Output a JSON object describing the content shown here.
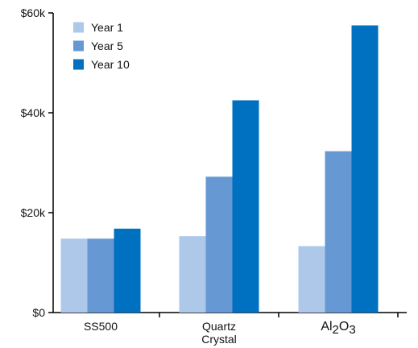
{
  "chart_data": {
    "type": "bar",
    "title": "",
    "xlabel": "",
    "ylabel": "",
    "categories": [
      {
        "lines": [
          "SS500"
        ]
      },
      {
        "lines": [
          "Quartz",
          "Crystal"
        ]
      },
      {
        "lines": [
          "Al2O3"
        ],
        "runs": [
          {
            "text": "Al",
            "sub": false
          },
          {
            "text": "2",
            "sub": true
          },
          {
            "text": "O",
            "sub": false
          },
          {
            "text": "3",
            "sub": true
          }
        ]
      }
    ],
    "series": [
      {
        "name": "Year 1",
        "color": "#adc8e8",
        "values": [
          14800,
          15300,
          13300
        ]
      },
      {
        "name": "Year 5",
        "color": "#6699d3",
        "values": [
          14800,
          27200,
          32300
        ]
      },
      {
        "name": "Year 10",
        "color": "#0070c0",
        "values": [
          16800,
          42500,
          57500
        ]
      }
    ],
    "ylim": [
      0,
      60000
    ],
    "yticks": [
      {
        "value": 0,
        "label": "$0"
      },
      {
        "value": 20000,
        "label": "$20k"
      },
      {
        "value": 40000,
        "label": "$40k"
      },
      {
        "value": 60000,
        "label": "$60k"
      }
    ],
    "grid": false,
    "legend_position": "top-left"
  }
}
